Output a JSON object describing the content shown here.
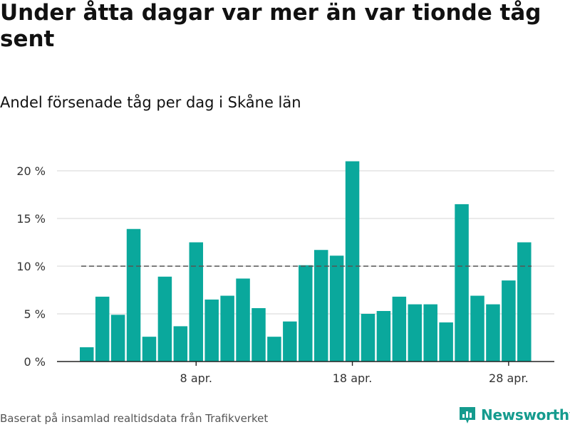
{
  "header": {
    "title": "Under åtta dagar var mer än var tionde tåg sent",
    "subtitle": "Andel försenade tåg per dag i Skåne län"
  },
  "chart_data": {
    "type": "bar",
    "ylim": [
      0,
      22
    ],
    "y_ticks": [
      0,
      5,
      10,
      15,
      20
    ],
    "y_tick_labels": [
      "0 %",
      "5 %",
      "10 %",
      "15 %",
      "20 %"
    ],
    "x_tick_labels": [
      {
        "index": 7,
        "label": "8 apr."
      },
      {
        "index": 17,
        "label": "18 apr."
      },
      {
        "index": 27,
        "label": "28 apr."
      }
    ],
    "values": [
      1.5,
      6.8,
      4.9,
      13.9,
      2.6,
      8.9,
      3.7,
      12.5,
      6.5,
      6.9,
      8.7,
      5.6,
      2.6,
      4.2,
      10.1,
      11.7,
      11.1,
      21.0,
      5.0,
      5.3,
      6.8,
      6.0,
      6.0,
      4.1,
      16.5,
      6.9,
      6.0,
      8.5,
      12.5
    ],
    "reference_line": 10,
    "bar_color": "#0aa89c",
    "reference_color": "#555555",
    "grid": true
  },
  "footer": {
    "source": "Baserat på insamlad realtidsdata från Trafikverket",
    "brand": "Newsworthy",
    "brand_color": "#159b8e"
  }
}
